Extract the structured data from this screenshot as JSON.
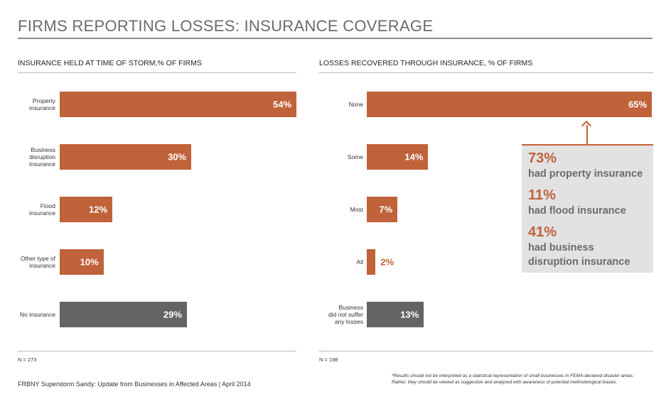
{
  "title": "FIRMS REPORTING LOSSES: INSURANCE COVERAGE",
  "chart_data": [
    {
      "type": "bar",
      "orientation": "horizontal",
      "title": "INSURANCE HELD AT TIME OF STORM,% OF FIRMS",
      "categories": [
        "Property\ninsurance",
        "Business\ndisruption\ninsurance",
        "Flood\ninsurance",
        "Other type of\ninsurance",
        "No insurance"
      ],
      "values": [
        54,
        30,
        12,
        10,
        29
      ],
      "value_labels": [
        "54%",
        "30%",
        "12%",
        "10%",
        "29%"
      ],
      "colors": [
        "#c0623a",
        "#c0623a",
        "#c0623a",
        "#c0623a",
        "#646464"
      ],
      "note": "N = 273"
    },
    {
      "type": "bar",
      "orientation": "horizontal",
      "title": "LOSSES RECOVERED THROUGH INSURANCE, % OF FIRMS",
      "categories": [
        "None",
        "Some",
        "Most",
        "All",
        "Business\ndid not suffer\nany losses"
      ],
      "values": [
        65,
        14,
        7,
        2,
        13
      ],
      "value_labels": [
        "65%",
        "14%",
        "7%",
        "2%",
        "13%"
      ],
      "colors": [
        "#c0623a",
        "#c0623a",
        "#c0623a",
        "#c0623a",
        "#646464"
      ],
      "note": "N = 198"
    }
  ],
  "callout": [
    {
      "figure": "73%",
      "text": "had property insurance"
    },
    {
      "figure": "11%",
      "text": "had flood insurance"
    },
    {
      "figure": "41%",
      "text": "had business\ndisruption insurance"
    }
  ],
  "source": "FRBNY Superstorm Sandy: Update from Businesses in Affected Areas | April 2014",
  "disclaimer": "*Results should not be interpreted as a statistical representation of small businesses in FEMA-declared disaster areas.\nRather, they should be viewed as suggestive and analyzed with awareness of potential methodological biases."
}
